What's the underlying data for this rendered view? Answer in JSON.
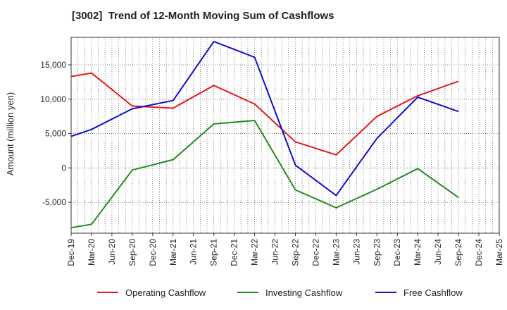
{
  "chart_data": {
    "type": "line",
    "title": "[3002]  Trend of 12-Month Moving Sum of Cashflows",
    "xlabel": "",
    "ylabel": "Amount (million yen)",
    "ylim": [
      -9500,
      19000
    ],
    "yticks": [
      -5000,
      0,
      5000,
      10000,
      15000
    ],
    "ytick_labels": [
      "-5,000",
      "0",
      "5,000",
      "10,000",
      "15,000"
    ],
    "x_tick_labels": [
      "Dec-19",
      "Mar-20",
      "Jun-20",
      "Sep-20",
      "Dec-20",
      "Mar-21",
      "Jun-21",
      "Sep-21",
      "Dec-21",
      "Mar-22",
      "Jun-22",
      "Sep-22",
      "Dec-22",
      "Mar-23",
      "Jun-23",
      "Sep-23",
      "Dec-23",
      "Mar-24",
      "Jun-24",
      "Sep-24",
      "Dec-24",
      "Mar-25"
    ],
    "x_tick_extra": "Mar-25",
    "grid": true,
    "legend_position": "bottom",
    "series": [
      {
        "name": "Operating Cashflow",
        "color": "#e31a1c",
        "x": [
          "Dec-19",
          "Mar-20",
          "Sep-20",
          "Mar-21",
          "Sep-21",
          "Mar-22",
          "Sep-22",
          "Mar-23",
          "Sep-23",
          "Mar-24",
          "Sep-24"
        ],
        "values": [
          13300,
          13800,
          9000,
          8700,
          12000,
          9300,
          3800,
          1900,
          7500,
          10500,
          12600
        ]
      },
      {
        "name": "Investing Cashflow",
        "color": "#238b22",
        "x": [
          "Dec-19",
          "Mar-20",
          "Sep-20",
          "Mar-21",
          "Sep-21",
          "Mar-22",
          "Sep-22",
          "Mar-23",
          "Sep-23",
          "Mar-24",
          "Sep-24"
        ],
        "values": [
          -8700,
          -8200,
          -300,
          1200,
          6400,
          6900,
          -3200,
          -5800,
          -3100,
          -100,
          -4300
        ]
      },
      {
        "name": "Free Cashflow",
        "color": "#1010cc",
        "x": [
          "Dec-19",
          "Mar-20",
          "Sep-20",
          "Mar-21",
          "Sep-21",
          "Mar-22",
          "Sep-22",
          "Mar-23",
          "Sep-23",
          "Mar-24",
          "Sep-24"
        ],
        "values": [
          4600,
          5600,
          8600,
          9800,
          18400,
          16100,
          400,
          -4000,
          4300,
          10300,
          8200
        ]
      }
    ]
  }
}
